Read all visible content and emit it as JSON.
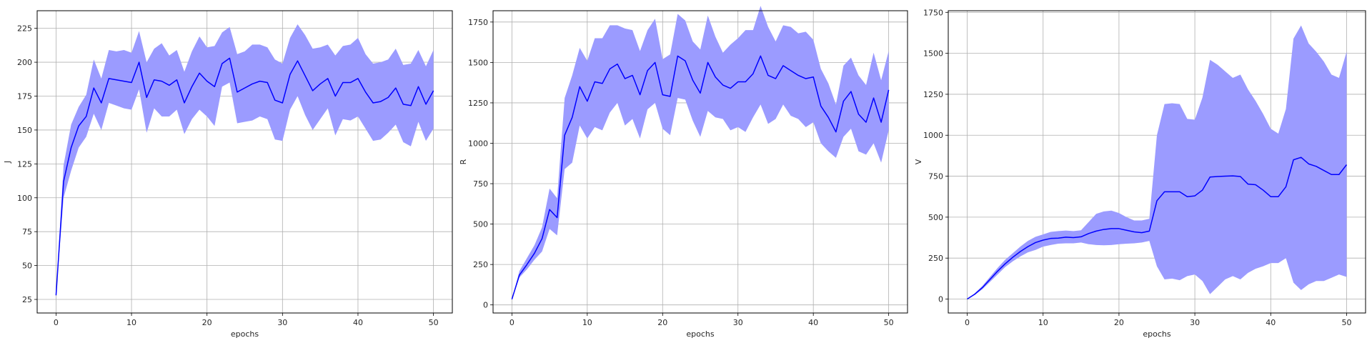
{
  "chart_data": [
    {
      "type": "line",
      "xlabel": "epochs",
      "ylabel": "J",
      "xlim": [
        -2.5,
        52.5
      ],
      "ylim": [
        15,
        238
      ],
      "xticks": [
        0,
        10,
        20,
        30,
        40,
        50
      ],
      "yticks": [
        25,
        50,
        75,
        100,
        125,
        150,
        175,
        200,
        225
      ],
      "grid": true,
      "x": [
        0,
        1,
        2,
        3,
        4,
        5,
        6,
        7,
        8,
        9,
        10,
        11,
        12,
        13,
        14,
        15,
        16,
        17,
        18,
        19,
        20,
        21,
        22,
        23,
        24,
        25,
        26,
        27,
        28,
        29,
        30,
        31,
        32,
        33,
        34,
        35,
        36,
        37,
        38,
        39,
        40,
        41,
        42,
        43,
        44,
        45,
        46,
        47,
        48,
        49,
        50
      ],
      "series": [
        {
          "values": [
            28,
            112,
            137,
            153,
            160,
            181,
            170,
            188,
            187,
            186,
            185,
            200,
            174,
            187,
            186,
            183,
            187,
            170,
            182,
            192,
            186,
            182,
            199,
            203,
            178,
            181,
            184,
            186,
            185,
            172,
            170,
            191,
            201,
            190,
            179,
            184,
            188,
            175,
            185,
            185,
            188,
            178,
            170,
            171,
            174,
            181,
            169,
            168,
            182,
            169,
            179
          ],
          "lower": [
            28,
            100,
            120,
            137,
            145,
            162,
            150,
            170,
            168,
            166,
            165,
            180,
            148,
            166,
            160,
            160,
            165,
            147,
            158,
            165,
            160,
            153,
            182,
            185,
            155,
            156,
            157,
            160,
            158,
            143,
            142,
            165,
            175,
            161,
            150,
            158,
            166,
            146,
            158,
            157,
            160,
            151,
            142,
            143,
            148,
            154,
            141,
            138,
            156,
            142,
            151
          ],
          "upper": [
            28,
            124,
            154,
            167,
            176,
            202,
            188,
            209,
            208,
            209,
            207,
            223,
            200,
            210,
            214,
            205,
            209,
            193,
            208,
            219,
            211,
            212,
            222,
            226,
            206,
            208,
            213,
            213,
            211,
            202,
            199,
            218,
            228,
            220,
            210,
            211,
            213,
            205,
            212,
            213,
            218,
            206,
            199,
            200,
            202,
            210,
            198,
            199,
            209,
            197,
            209
          ],
          "color": "#0000ff",
          "band_color": "#9b9bff"
        }
      ]
    },
    {
      "type": "line",
      "xlabel": "epochs",
      "ylabel": "R",
      "xlim": [
        -2.5,
        52.5
      ],
      "ylim": [
        -50,
        1820
      ],
      "xticks": [
        0,
        10,
        20,
        30,
        40,
        50
      ],
      "yticks": [
        0,
        250,
        500,
        750,
        1000,
        1250,
        1500,
        1750
      ],
      "grid": true,
      "x": [
        0,
        1,
        2,
        3,
        4,
        5,
        6,
        7,
        8,
        9,
        10,
        11,
        12,
        13,
        14,
        15,
        16,
        17,
        18,
        19,
        20,
        21,
        22,
        23,
        24,
        25,
        26,
        27,
        28,
        29,
        30,
        31,
        32,
        33,
        34,
        35,
        36,
        37,
        38,
        39,
        40,
        41,
        42,
        43,
        44,
        45,
        46,
        47,
        48,
        49,
        50
      ],
      "series": [
        {
          "values": [
            35,
            185,
            250,
            320,
            410,
            590,
            540,
            1050,
            1160,
            1350,
            1260,
            1380,
            1370,
            1460,
            1490,
            1400,
            1420,
            1300,
            1450,
            1500,
            1300,
            1290,
            1540,
            1510,
            1390,
            1310,
            1500,
            1410,
            1360,
            1340,
            1380,
            1380,
            1430,
            1540,
            1420,
            1400,
            1480,
            1450,
            1420,
            1400,
            1410,
            1230,
            1160,
            1070,
            1260,
            1320,
            1180,
            1130,
            1280,
            1130,
            1330
          ],
          "lower": [
            35,
            170,
            220,
            280,
            330,
            470,
            430,
            840,
            880,
            1110,
            1030,
            1100,
            1080,
            1190,
            1250,
            1110,
            1150,
            1030,
            1210,
            1250,
            1090,
            1050,
            1280,
            1270,
            1140,
            1040,
            1200,
            1160,
            1150,
            1080,
            1100,
            1070,
            1160,
            1240,
            1120,
            1150,
            1240,
            1170,
            1150,
            1100,
            1130,
            1000,
            950,
            910,
            1040,
            1090,
            950,
            930,
            1000,
            880,
            1080
          ],
          "upper": [
            35,
            210,
            290,
            370,
            480,
            720,
            660,
            1280,
            1420,
            1590,
            1510,
            1650,
            1650,
            1730,
            1730,
            1710,
            1700,
            1570,
            1700,
            1770,
            1520,
            1550,
            1800,
            1760,
            1630,
            1580,
            1790,
            1660,
            1560,
            1610,
            1650,
            1700,
            1700,
            1850,
            1720,
            1630,
            1730,
            1720,
            1680,
            1690,
            1640,
            1460,
            1370,
            1240,
            1480,
            1530,
            1420,
            1360,
            1560,
            1390,
            1570
          ],
          "color": "#0000ff",
          "band_color": "#9b9bff"
        }
      ]
    },
    {
      "type": "line",
      "xlabel": "epochs",
      "ylabel": "V",
      "xlim": [
        -2.5,
        52.5
      ],
      "ylim": [
        -85,
        1760
      ],
      "xticks": [
        0,
        10,
        20,
        30,
        40,
        50
      ],
      "yticks": [
        0,
        250,
        500,
        750,
        1000,
        1250,
        1500,
        1750
      ],
      "grid": true,
      "x": [
        0,
        1,
        2,
        3,
        4,
        5,
        6,
        7,
        8,
        9,
        10,
        11,
        12,
        13,
        14,
        15,
        16,
        17,
        18,
        19,
        20,
        21,
        22,
        23,
        24,
        25,
        26,
        27,
        28,
        29,
        30,
        31,
        32,
        33,
        34,
        35,
        36,
        37,
        38,
        39,
        40,
        41,
        42,
        43,
        44,
        45,
        46,
        47,
        48,
        49,
        50
      ],
      "series": [
        {
          "values": [
            0,
            30,
            70,
            120,
            170,
            215,
            255,
            290,
            320,
            345,
            360,
            370,
            372,
            378,
            375,
            380,
            400,
            415,
            425,
            430,
            430,
            420,
            410,
            405,
            415,
            600,
            655,
            655,
            655,
            625,
            630,
            665,
            745,
            748,
            750,
            752,
            748,
            702,
            698,
            665,
            625,
            625,
            685,
            850,
            865,
            825,
            810,
            785,
            760,
            760,
            820
          ],
          "lower": [
            0,
            25,
            60,
            105,
            150,
            195,
            230,
            260,
            285,
            300,
            320,
            330,
            338,
            340,
            340,
            345,
            335,
            330,
            328,
            330,
            335,
            338,
            340,
            345,
            355,
            200,
            120,
            125,
            115,
            140,
            150,
            110,
            30,
            75,
            120,
            140,
            120,
            160,
            185,
            200,
            220,
            220,
            250,
            100,
            55,
            90,
            110,
            110,
            130,
            150,
            135
          ],
          "upper": [
            0,
            35,
            80,
            135,
            190,
            240,
            280,
            320,
            355,
            380,
            395,
            410,
            415,
            418,
            415,
            420,
            470,
            520,
            535,
            540,
            525,
            500,
            480,
            480,
            490,
            1000,
            1190,
            1195,
            1190,
            1100,
            1095,
            1230,
            1460,
            1430,
            1390,
            1350,
            1370,
            1280,
            1210,
            1130,
            1040,
            1010,
            1160,
            1590,
            1670,
            1560,
            1510,
            1450,
            1370,
            1350,
            1510
          ],
          "color": "#0000ff",
          "band_color": "#9b9bff"
        }
      ]
    }
  ]
}
